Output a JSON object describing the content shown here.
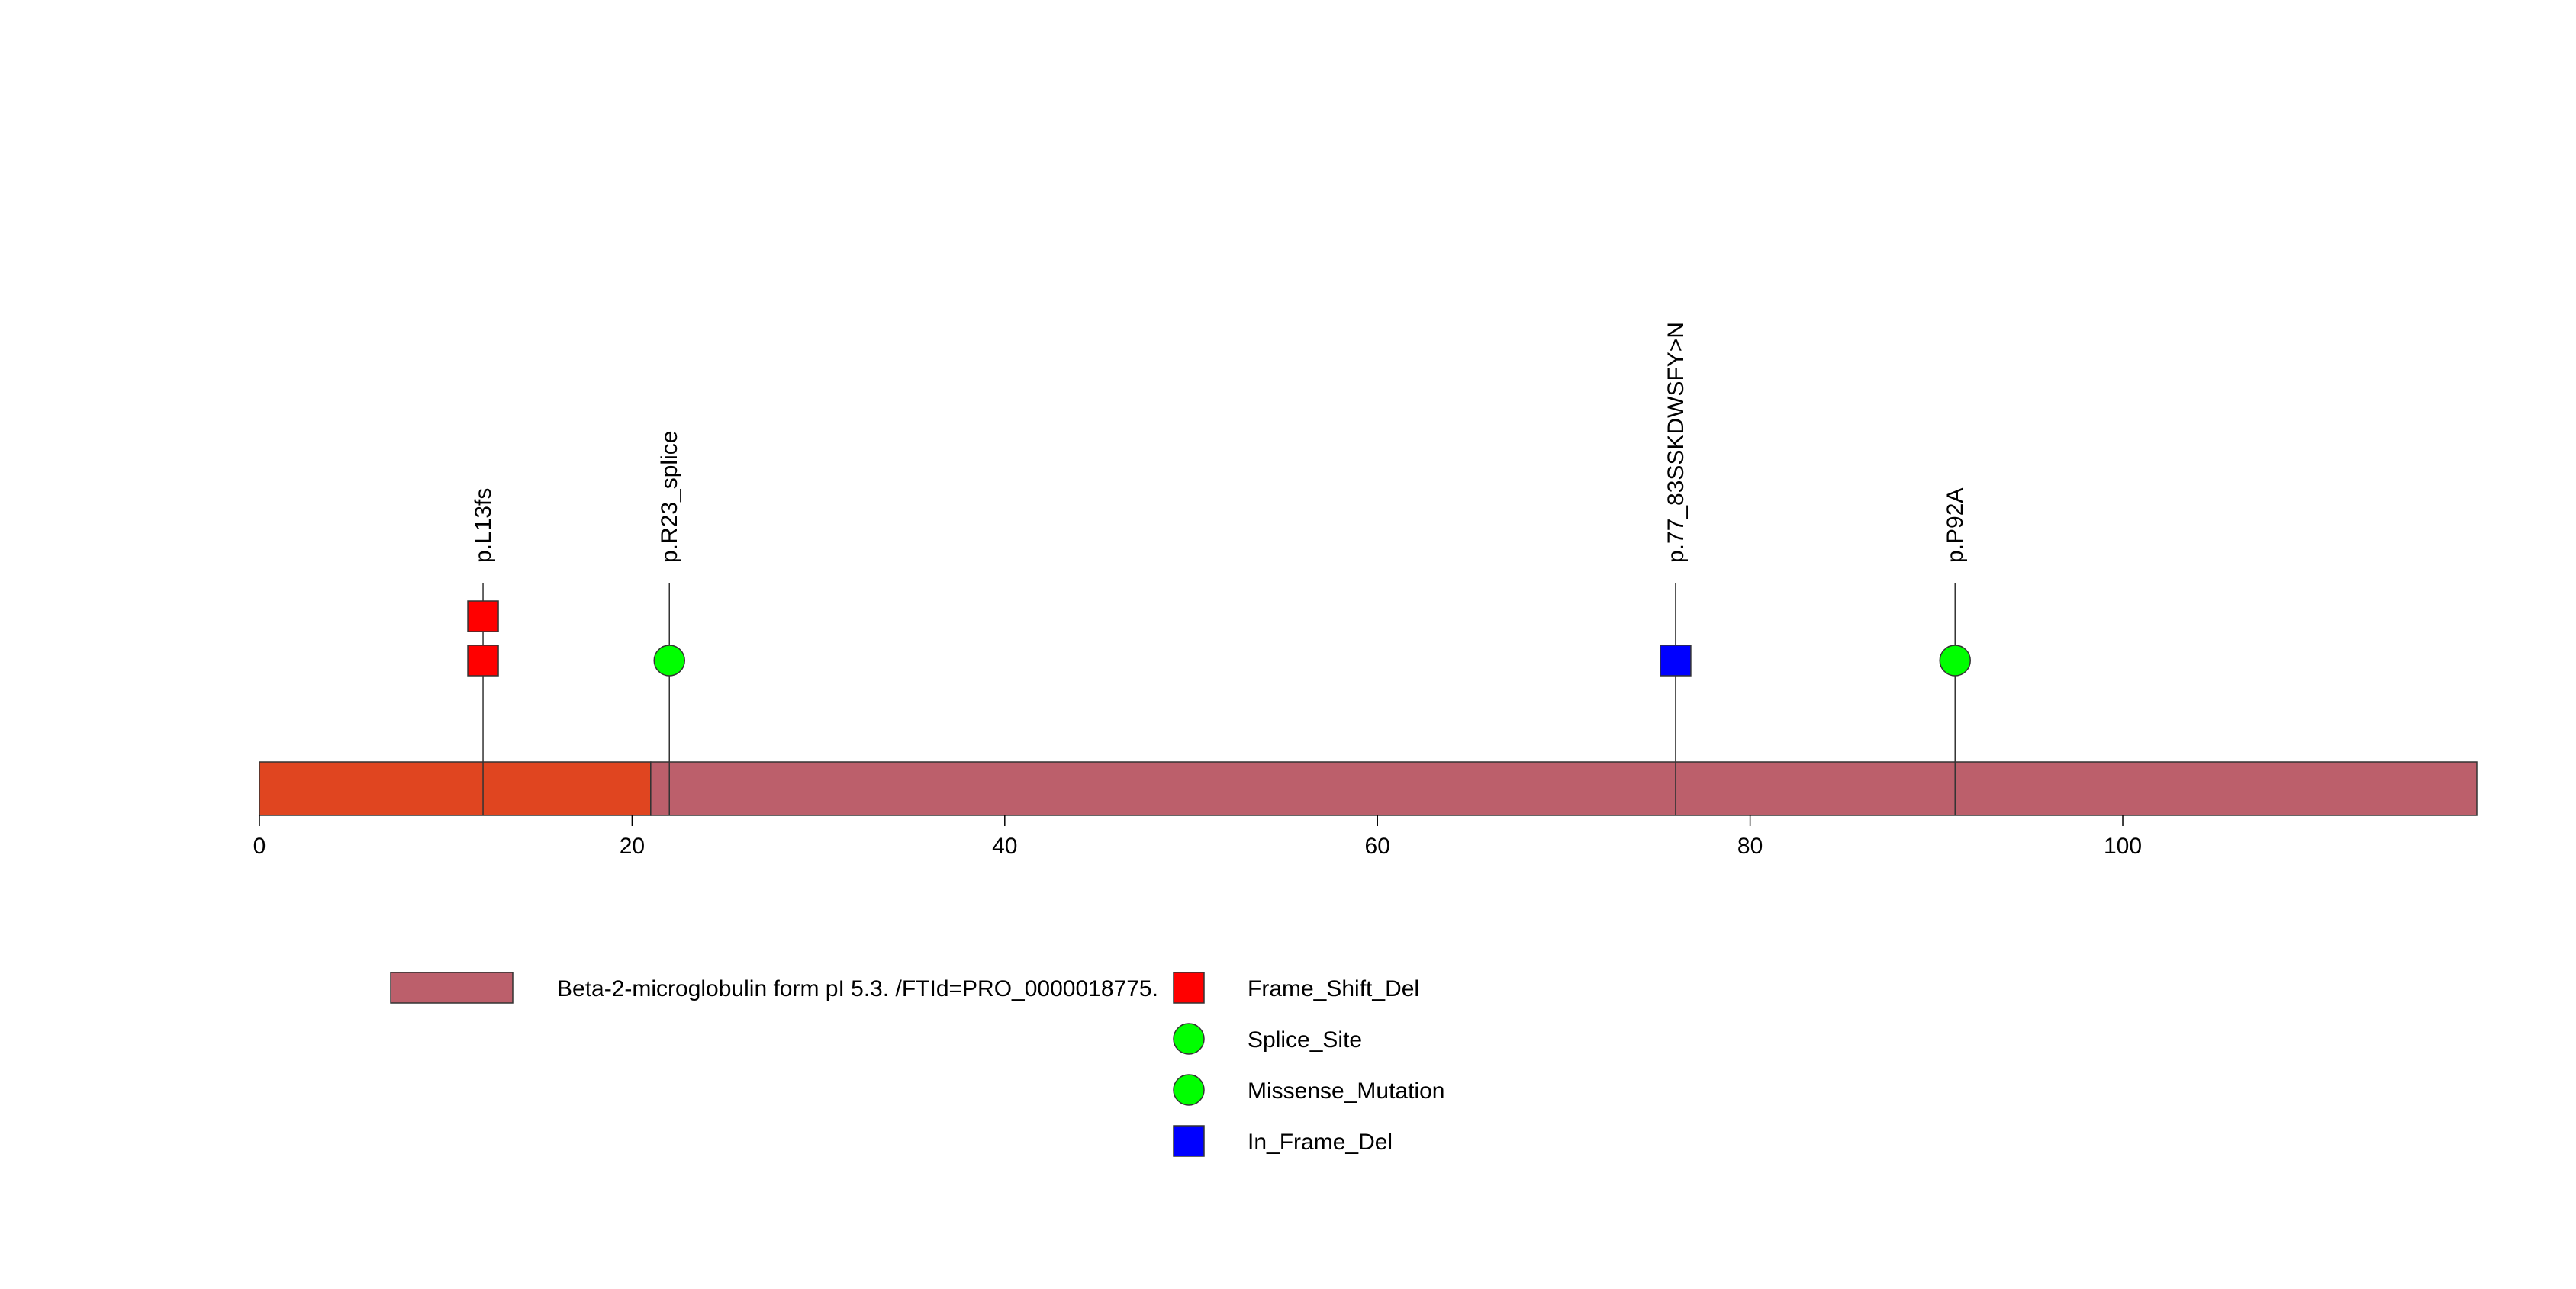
{
  "chart_data": {
    "type": "lollipop",
    "title": "",
    "x_axis": {
      "range": [
        0,
        119
      ],
      "ticks": [
        0,
        20,
        40,
        60,
        80,
        100
      ],
      "tick_labels": [
        "0",
        "20",
        "40",
        "60",
        "80",
        "100"
      ]
    },
    "protein": {
      "length": 119,
      "segments": [
        {
          "start": 0,
          "end": 21,
          "color": "#E04520"
        },
        {
          "start": 21,
          "end": 119,
          "color": "#BC5F6B"
        }
      ]
    },
    "mutations": [
      {
        "position": 12,
        "label": "p.L13fs",
        "count": 2,
        "type": "Frame_Shift_Del"
      },
      {
        "position": 22,
        "label": "p.R23_splice",
        "count": 1,
        "type": "Splice_Site"
      },
      {
        "position": 76,
        "label": "p.77_83SSKDWSFY>N",
        "count": 1,
        "type": "In_Frame_Del"
      },
      {
        "position": 91,
        "label": "p.P92A",
        "count": 1,
        "type": "Missense_Mutation"
      }
    ],
    "mutation_types": [
      {
        "name": "Frame_Shift_Del",
        "shape": "square",
        "color": "#FF0000"
      },
      {
        "name": "Splice_Site",
        "shape": "circle",
        "color": "#00FF00"
      },
      {
        "name": "Missense_Mutation",
        "shape": "circle",
        "color": "#00FF00"
      },
      {
        "name": "In_Frame_Del",
        "shape": "square",
        "color": "#0000FF"
      }
    ],
    "domain_legend": [
      {
        "label": "Beta-2-microglobulin form pI 5.3. /FTId=PRO_0000018775.",
        "color": "#BC5F6B"
      }
    ],
    "legend_placement": "bottom"
  }
}
